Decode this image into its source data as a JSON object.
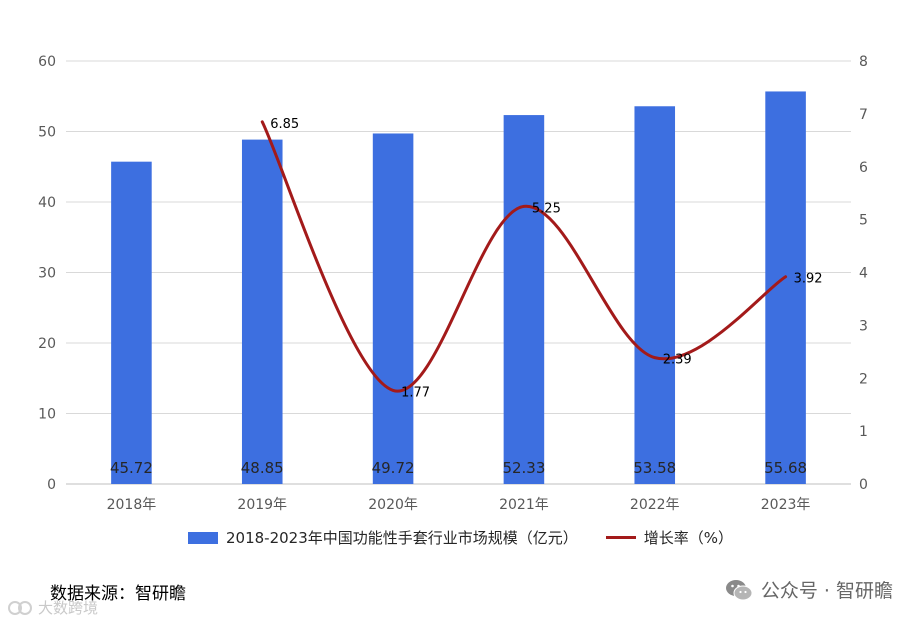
{
  "chart_data": {
    "type": "bar",
    "categories": [
      "2018年",
      "2019年",
      "2020年",
      "2021年",
      "2022年",
      "2023年"
    ],
    "series": [
      {
        "name": "2018-2023年中国功能性手套行业市场规模（亿元）",
        "type": "bar",
        "axis": "left",
        "values": [
          45.72,
          48.85,
          49.72,
          52.33,
          53.58,
          55.68
        ],
        "labels": [
          "45.72",
          "48.85",
          "49.72",
          "52.33",
          "53.58",
          "55.68"
        ],
        "color": "#3d6fe0"
      },
      {
        "name": "增长率（%）",
        "type": "line",
        "axis": "right",
        "values": [
          null,
          6.85,
          1.77,
          5.25,
          2.39,
          3.92
        ],
        "labels": [
          "",
          "6.85",
          "1.77",
          "5.25",
          "2.39",
          "3.92"
        ],
        "color": "#a31a1a"
      }
    ],
    "y_left": {
      "min": 0,
      "max": 60,
      "ticks": [
        "0",
        "10",
        "20",
        "30",
        "40",
        "50",
        "60"
      ]
    },
    "y_right": {
      "min": 0,
      "max": 8,
      "ticks": [
        "0",
        "1",
        "2",
        "3",
        "4",
        "5",
        "6",
        "7",
        "8"
      ]
    },
    "grid": true,
    "legend_position": "bottom"
  },
  "footer": {
    "source": "数据来源：智研瞻",
    "wechat": "公众号 · 智研瞻",
    "watermark": "大数跨境"
  }
}
